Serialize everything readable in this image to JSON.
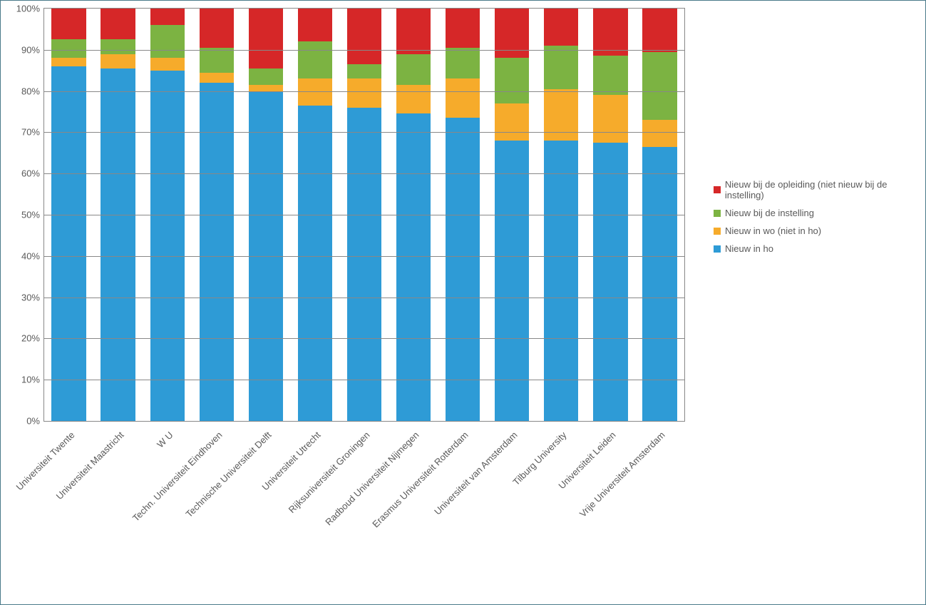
{
  "chart": {
    "type": "stacked-bar-100",
    "background_color": "#ffffff",
    "border_color": "#4a7a8a",
    "grid_color": "#888888",
    "text_color": "#595959",
    "label_fontsize": 13,
    "ylim": [
      0,
      100
    ],
    "ytick_step": 10,
    "yticks": [
      "0%",
      "10%",
      "20%",
      "30%",
      "40%",
      "50%",
      "60%",
      "70%",
      "80%",
      "90%",
      "100%"
    ],
    "bar_width": 0.7,
    "categories": [
      "Universiteit Twente",
      "Universiteit Maastricht",
      "W U",
      "Techn. Universiteit Eindhoven",
      "Technische Universiteit Delft",
      "Universiteit Utrecht",
      "Rijksuniversiteit Groningen",
      "Radboud Universiteit Nijmegen",
      "Erasmus Universiteit Rotterdam",
      "Universiteit van Amsterdam",
      "Tilburg University",
      "Universiteit Leiden",
      "Vrije Universiteit Amsterdam"
    ],
    "series": [
      {
        "key": "nieuw_in_ho",
        "label": "Nieuw in ho",
        "color": "#2e9bd6"
      },
      {
        "key": "nieuw_in_wo",
        "label": "Nieuw in wo (niet in ho)",
        "color": "#f6ab2b"
      },
      {
        "key": "nieuw_bij_instelling",
        "label": "Nieuw bij de instelling",
        "color": "#7cb342"
      },
      {
        "key": "nieuw_bij_opleiding",
        "label": "Nieuw bij de opleiding (niet nieuw bij de instelling)",
        "color": "#d62728"
      }
    ],
    "legend_order": [
      "nieuw_bij_opleiding",
      "nieuw_bij_instelling",
      "nieuw_in_wo",
      "nieuw_in_ho"
    ],
    "data": [
      {
        "nieuw_in_ho": 86.0,
        "nieuw_in_wo": 2.0,
        "nieuw_bij_instelling": 4.5,
        "nieuw_bij_opleiding": 7.5
      },
      {
        "nieuw_in_ho": 85.5,
        "nieuw_in_wo": 3.5,
        "nieuw_bij_instelling": 3.5,
        "nieuw_bij_opleiding": 7.5
      },
      {
        "nieuw_in_ho": 85.0,
        "nieuw_in_wo": 3.0,
        "nieuw_bij_instelling": 8.0,
        "nieuw_bij_opleiding": 4.0
      },
      {
        "nieuw_in_ho": 82.0,
        "nieuw_in_wo": 2.5,
        "nieuw_bij_instelling": 6.0,
        "nieuw_bij_opleiding": 9.5
      },
      {
        "nieuw_in_ho": 80.0,
        "nieuw_in_wo": 1.5,
        "nieuw_bij_instelling": 4.0,
        "nieuw_bij_opleiding": 14.5
      },
      {
        "nieuw_in_ho": 76.5,
        "nieuw_in_wo": 6.5,
        "nieuw_bij_instelling": 9.0,
        "nieuw_bij_opleiding": 8.0
      },
      {
        "nieuw_in_ho": 76.0,
        "nieuw_in_wo": 7.0,
        "nieuw_bij_instelling": 3.5,
        "nieuw_bij_opleiding": 13.5
      },
      {
        "nieuw_in_ho": 74.5,
        "nieuw_in_wo": 7.0,
        "nieuw_bij_instelling": 7.5,
        "nieuw_bij_opleiding": 11.0
      },
      {
        "nieuw_in_ho": 73.5,
        "nieuw_in_wo": 9.5,
        "nieuw_bij_instelling": 7.5,
        "nieuw_bij_opleiding": 9.5
      },
      {
        "nieuw_in_ho": 68.0,
        "nieuw_in_wo": 9.0,
        "nieuw_bij_instelling": 11.0,
        "nieuw_bij_opleiding": 12.0
      },
      {
        "nieuw_in_ho": 68.0,
        "nieuw_in_wo": 12.5,
        "nieuw_bij_instelling": 10.5,
        "nieuw_bij_opleiding": 9.0
      },
      {
        "nieuw_in_ho": 67.5,
        "nieuw_in_wo": 11.5,
        "nieuw_bij_instelling": 9.5,
        "nieuw_bij_opleiding": 11.5
      },
      {
        "nieuw_in_ho": 66.5,
        "nieuw_in_wo": 6.5,
        "nieuw_bij_instelling": 16.5,
        "nieuw_bij_opleiding": 10.5
      }
    ],
    "legend_position": "right",
    "xlabel_rotation": -45
  }
}
